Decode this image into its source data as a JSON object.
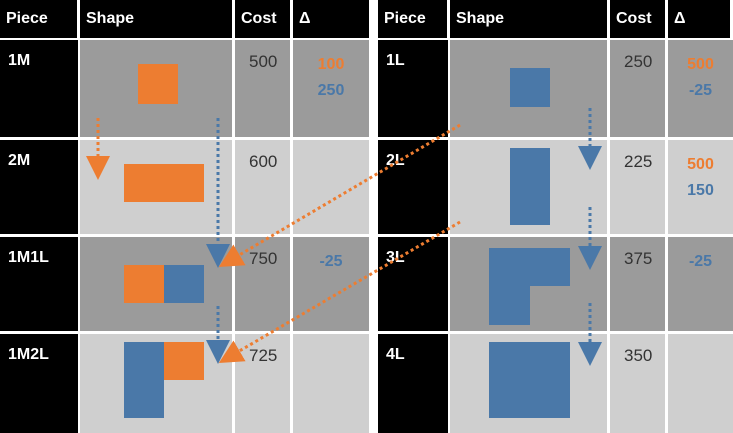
{
  "tables": [
    {
      "header": [
        "Piece",
        "Shape",
        "Cost",
        "Δ"
      ],
      "rows": [
        {
          "piece": "1M",
          "cost": 500,
          "delta": [
            {
              "value": 100,
              "color": "#ed7d31"
            },
            {
              "value": 250,
              "color": "#4a78a8"
            }
          ]
        },
        {
          "piece": "2M",
          "cost": 600,
          "delta": []
        },
        {
          "piece": "1M1L",
          "cost": 750,
          "delta": [
            {
              "value": -25,
              "color": "#4a78a8"
            }
          ]
        },
        {
          "piece": "1M2L",
          "cost": 725,
          "delta": []
        }
      ]
    },
    {
      "header": [
        "Piece",
        "Shape",
        "Cost",
        "Δ"
      ],
      "rows": [
        {
          "piece": "1L",
          "cost": 250,
          "delta": [
            {
              "value": 500,
              "color": "#ed7d31"
            },
            {
              "value": -25,
              "color": "#4a78a8"
            }
          ]
        },
        {
          "piece": "2L",
          "cost": 225,
          "delta": [
            {
              "value": 500,
              "color": "#ed7d31"
            },
            {
              "value": 150,
              "color": "#4a78a8"
            }
          ]
        },
        {
          "piece": "3L",
          "cost": 375,
          "delta": [
            {
              "value": -25,
              "color": "#4a78a8"
            }
          ]
        },
        {
          "piece": "4L",
          "cost": 350,
          "delta": []
        }
      ]
    }
  ]
}
